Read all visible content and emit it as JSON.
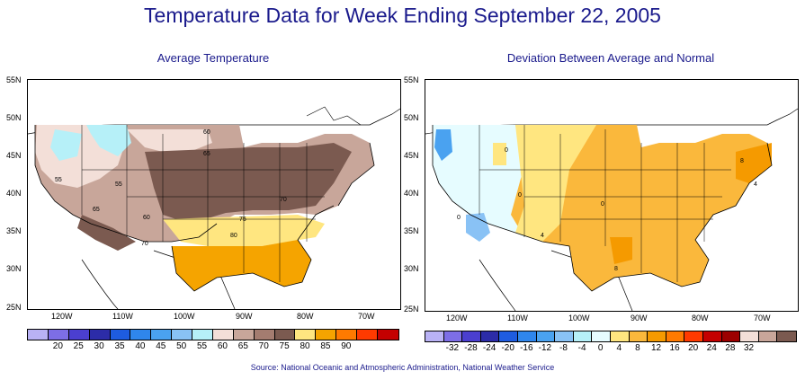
{
  "title": "Temperature Data for Week Ending September 22, 2005",
  "source": "Source:  National Oceanic and Atmospheric Administration, National Weather Service",
  "left_panel": {
    "title": "Average Temperature",
    "lat_labels": [
      "55N",
      "50N",
      "45N",
      "40N",
      "35N",
      "30N",
      "25N"
    ],
    "lon_labels": [
      "120W",
      "110W",
      "100W",
      "90W",
      "80W",
      "70W"
    ],
    "contour_labels": [
      "60",
      "65",
      "55",
      "55",
      "70",
      "65",
      "60",
      "75",
      "80",
      "70"
    ],
    "legend_labels": [
      "20",
      "25",
      "30",
      "35",
      "40",
      "45",
      "50",
      "55",
      "60",
      "65",
      "70",
      "75",
      "80",
      "85",
      "90"
    ],
    "legend_colors": [
      "#b9b2f5",
      "#7d6ee6",
      "#4b3fd0",
      "#2c2ca8",
      "#1e5ce0",
      "#2f86ec",
      "#4aa2f0",
      "#89c2f5",
      "#b6f0f8",
      "#f3dfd8",
      "#c8a69a",
      "#a47c70",
      "#7b5a50",
      "#ffe680",
      "#f5a400",
      "#ff7a00",
      "#ff3a00",
      "#c40000"
    ]
  },
  "right_panel": {
    "title": "Deviation Between Average and Normal",
    "lat_labels": [
      "55N",
      "50N",
      "45N",
      "40N",
      "35N",
      "30N",
      "25N"
    ],
    "lon_labels": [
      "120W",
      "110W",
      "100W",
      "90W",
      "80W",
      "70W"
    ],
    "contour_labels": [
      "0",
      "0",
      "0",
      "4",
      "0",
      "8",
      "8",
      "4"
    ],
    "legend_labels": [
      "-32",
      "-28",
      "-24",
      "-20",
      "-16",
      "-12",
      "-8",
      "-4",
      "0",
      "4",
      "8",
      "12",
      "16",
      "20",
      "24",
      "28",
      "32"
    ],
    "legend_colors": [
      "#b9b2f5",
      "#7d6ee6",
      "#4b3fd0",
      "#2c2ca8",
      "#1e5ce0",
      "#2f86ec",
      "#4aa2f0",
      "#89c2f5",
      "#b6f0f8",
      "#e6fcff",
      "#ffe680",
      "#fab83c",
      "#f59a00",
      "#ff7a00",
      "#ff3a00",
      "#c40000",
      "#9c0000",
      "#f3dfd8",
      "#c8a69a",
      "#7b5a50"
    ]
  }
}
